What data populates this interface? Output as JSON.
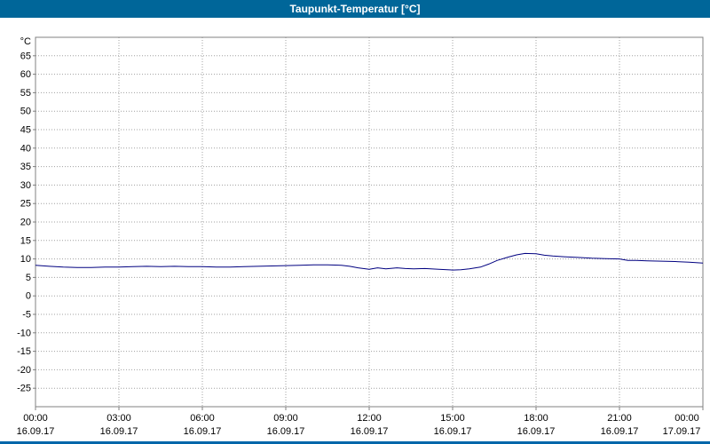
{
  "window": {
    "title": "Taupunkt-Temperatur [°C]"
  },
  "colors": {
    "titlebar_bg": "#006699",
    "titlebar_text": "#ffffff",
    "page_bg": "#ffffff",
    "plot_bg": "#ffffff",
    "plot_border": "#808080",
    "grid": "#a0a0a0",
    "axis_text": "#000000",
    "series_line": "#000080",
    "bottom_strip": "#0066aa"
  },
  "chart_data": {
    "type": "line",
    "title": "Taupunkt-Temperatur [°C]",
    "ylabel": "°C",
    "ylim": [
      -30,
      70
    ],
    "ytick_step": 5,
    "yticks": [
      65,
      60,
      55,
      50,
      45,
      40,
      35,
      30,
      25,
      20,
      15,
      10,
      5,
      0,
      -5,
      -10,
      -15,
      -20,
      -25
    ],
    "grid": "dotted",
    "legend": "none",
    "x_hours_range": [
      0,
      24
    ],
    "xticks": [
      {
        "hour": 0,
        "time": "00:00",
        "date": "16.09.17"
      },
      {
        "hour": 3,
        "time": "03:00",
        "date": "16.09.17"
      },
      {
        "hour": 6,
        "time": "06:00",
        "date": "16.09.17"
      },
      {
        "hour": 9,
        "time": "09:00",
        "date": "16.09.17"
      },
      {
        "hour": 12,
        "time": "12:00",
        "date": "16.09.17"
      },
      {
        "hour": 15,
        "time": "15:00",
        "date": "16.09.17"
      },
      {
        "hour": 18,
        "time": "18:00",
        "date": "16.09.17"
      },
      {
        "hour": 21,
        "time": "21:00",
        "date": "16.09.17"
      },
      {
        "hour": 24,
        "time": "00:00",
        "date": "17.09.17"
      }
    ],
    "series": [
      {
        "name": "Taupunkt-Temperatur",
        "color": "#000080",
        "points": [
          [
            0,
            8.3
          ],
          [
            0.5,
            8.0
          ],
          [
            1,
            7.8
          ],
          [
            1.5,
            7.7
          ],
          [
            2,
            7.7
          ],
          [
            2.5,
            7.8
          ],
          [
            3,
            7.8
          ],
          [
            3.5,
            7.9
          ],
          [
            4,
            8.0
          ],
          [
            4.5,
            7.9
          ],
          [
            5,
            8.0
          ],
          [
            5.5,
            7.9
          ],
          [
            6,
            7.9
          ],
          [
            6.5,
            7.8
          ],
          [
            7,
            7.8
          ],
          [
            7.5,
            7.9
          ],
          [
            8,
            8.0
          ],
          [
            8.5,
            8.1
          ],
          [
            9,
            8.2
          ],
          [
            9.5,
            8.3
          ],
          [
            10,
            8.4
          ],
          [
            10.5,
            8.4
          ],
          [
            11,
            8.3
          ],
          [
            11.3,
            8.0
          ],
          [
            11.6,
            7.6
          ],
          [
            12,
            7.2
          ],
          [
            12.3,
            7.6
          ],
          [
            12.6,
            7.3
          ],
          [
            13,
            7.6
          ],
          [
            13.3,
            7.4
          ],
          [
            13.6,
            7.3
          ],
          [
            14,
            7.4
          ],
          [
            14.5,
            7.2
          ],
          [
            15,
            7.0
          ],
          [
            15.3,
            7.1
          ],
          [
            15.6,
            7.3
          ],
          [
            16,
            7.8
          ],
          [
            16.3,
            8.6
          ],
          [
            16.6,
            9.6
          ],
          [
            17,
            10.5
          ],
          [
            17.3,
            11.1
          ],
          [
            17.6,
            11.5
          ],
          [
            18,
            11.4
          ],
          [
            18.3,
            11.0
          ],
          [
            18.6,
            10.8
          ],
          [
            19,
            10.6
          ],
          [
            19.5,
            10.4
          ],
          [
            20,
            10.2
          ],
          [
            20.5,
            10.1
          ],
          [
            21,
            10.0
          ],
          [
            21.3,
            9.6
          ],
          [
            21.6,
            9.6
          ],
          [
            22,
            9.5
          ],
          [
            22.5,
            9.4
          ],
          [
            23,
            9.3
          ],
          [
            23.5,
            9.1
          ],
          [
            24,
            8.9
          ]
        ]
      }
    ]
  }
}
